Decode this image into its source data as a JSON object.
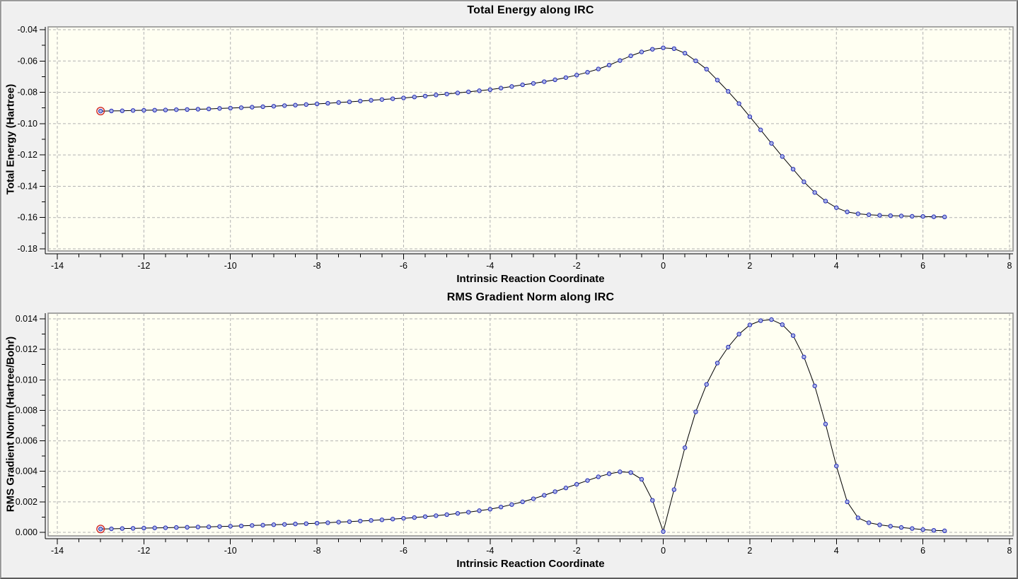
{
  "style": {
    "window_bg": "#f0f0f0",
    "plot_bg": "#fffff2",
    "plot_border": "#8a8a8a",
    "grid": "#b2b2b2",
    "axis": "#000000",
    "line": "#000000",
    "text": "#000000",
    "marker_fill": "#a9b3e8",
    "marker_stroke": "#2329b4",
    "selected_ring": "#d02622"
  },
  "chart_data": [
    {
      "type": "line",
      "title": "Total Energy along IRC",
      "xlabel": "Intrinsic Reaction Coordinate",
      "ylabel": "Total Energy (Hartree)",
      "grid": true,
      "xlim": [
        -14.2125,
        8.0817
      ],
      "ylim": [
        -0.18135,
        -0.03819
      ],
      "x_ticks": {
        "values": [
          -14,
          -12,
          -10,
          -8,
          -6,
          -4,
          -2,
          0,
          2,
          4,
          6,
          8
        ],
        "labels": [
          "-14",
          "-12",
          "-10",
          "-8",
          "-6",
          "-4",
          "-2",
          "0",
          "2",
          "4",
          "6",
          "8"
        ]
      },
      "x_minor_step": 0.5,
      "y_ticks": {
        "values": [
          -0.18,
          -0.16,
          -0.14,
          -0.12,
          -0.1,
          -0.08,
          -0.06,
          -0.04
        ],
        "labels": [
          "-0.18",
          "-0.16",
          "-0.14",
          "-0.12",
          "-0.10",
          "-0.08",
          "-0.06",
          "-0.04"
        ]
      },
      "y_minor_step": 0.01,
      "selected_point_index": 0,
      "series": [
        {
          "name": "Total Energy",
          "x": [
            -13,
            -12.75,
            -12.5,
            -12.25,
            -12,
            -11.75,
            -11.5,
            -11.25,
            -11,
            -10.75,
            -10.5,
            -10.25,
            -10,
            -9.75,
            -9.5,
            -9.25,
            -9,
            -8.75,
            -8.5,
            -8.25,
            -8,
            -7.75,
            -7.5,
            -7.25,
            -7,
            -6.75,
            -6.5,
            -6.25,
            -6,
            -5.75,
            -5.5,
            -5.25,
            -5,
            -4.75,
            -4.5,
            -4.25,
            -4,
            -3.75,
            -3.5,
            -3.25,
            -3,
            -2.75,
            -2.5,
            -2.25,
            -2,
            -1.75,
            -1.5,
            -1.25,
            -1,
            -0.75,
            -0.5,
            -0.25,
            0,
            0.25,
            0.5,
            0.75,
            1,
            1.25,
            1.5,
            1.75,
            2,
            2.25,
            2.5,
            2.75,
            3,
            3.25,
            3.5,
            3.75,
            4,
            4.25,
            4.5,
            4.75,
            5,
            5.25,
            5.5,
            5.75,
            6,
            6.25,
            6.5
          ],
          "y": [
            -0.092,
            -0.0919,
            -0.0918,
            -0.0916,
            -0.0915,
            -0.0914,
            -0.0913,
            -0.0911,
            -0.091,
            -0.0908,
            -0.0906,
            -0.0903,
            -0.0901,
            -0.0898,
            -0.0895,
            -0.0892,
            -0.0889,
            -0.0885,
            -0.0882,
            -0.0878,
            -0.0874,
            -0.087,
            -0.0865,
            -0.0861,
            -0.0856,
            -0.0851,
            -0.0846,
            -0.0841,
            -0.0836,
            -0.083,
            -0.0824,
            -0.0817,
            -0.0811,
            -0.0804,
            -0.0797,
            -0.079,
            -0.0783,
            -0.0773,
            -0.0763,
            -0.0752,
            -0.0743,
            -0.0732,
            -0.072,
            -0.0706,
            -0.069,
            -0.0672,
            -0.0651,
            -0.0626,
            -0.0597,
            -0.0567,
            -0.0542,
            -0.0525,
            -0.0516,
            -0.0521,
            -0.055,
            -0.0599,
            -0.0652,
            -0.0722,
            -0.0794,
            -0.0872,
            -0.0956,
            -0.104,
            -0.1126,
            -0.121,
            -0.1291,
            -0.1372,
            -0.144,
            -0.1495,
            -0.1537,
            -0.1564,
            -0.1576,
            -0.1582,
            -0.1586,
            -0.1588,
            -0.159,
            -0.1592,
            -0.1593,
            -0.1595,
            -0.1596
          ]
        }
      ]
    },
    {
      "type": "line",
      "title": "RMS Gradient Norm along IRC",
      "xlabel": "Intrinsic Reaction Coordinate",
      "ylabel": "RMS Gradient Norm (Hartree/Bohr)",
      "grid": true,
      "xlim": [
        -14.2125,
        8.0817
      ],
      "ylim": [
        -0.000232,
        0.014371
      ],
      "x_ticks": {
        "values": [
          -14,
          -12,
          -10,
          -8,
          -6,
          -4,
          -2,
          0,
          2,
          4,
          6,
          8
        ],
        "labels": [
          "-14",
          "-12",
          "-10",
          "-8",
          "-6",
          "-4",
          "-2",
          "0",
          "2",
          "4",
          "6",
          "8"
        ]
      },
      "x_minor_step": 0.5,
      "y_ticks": {
        "values": [
          0.0,
          0.002,
          0.004,
          0.006,
          0.008,
          0.01,
          0.012,
          0.014
        ],
        "labels": [
          "0.000",
          "0.002",
          "0.004",
          "0.006",
          "0.008",
          "0.010",
          "0.012",
          "0.014"
        ]
      },
      "y_minor_step": 0.001,
      "selected_point_index": 0,
      "series": [
        {
          "name": "RMS Gradient Norm",
          "x": [
            -13,
            -12.75,
            -12.5,
            -12.25,
            -12,
            -11.75,
            -11.5,
            -11.25,
            -11,
            -10.75,
            -10.5,
            -10.25,
            -10,
            -9.75,
            -9.5,
            -9.25,
            -9,
            -8.75,
            -8.5,
            -8.25,
            -8,
            -7.75,
            -7.5,
            -7.25,
            -7,
            -6.75,
            -6.5,
            -6.25,
            -6,
            -5.75,
            -5.5,
            -5.25,
            -5,
            -4.75,
            -4.5,
            -4.25,
            -4,
            -3.75,
            -3.5,
            -3.25,
            -3,
            -2.75,
            -2.5,
            -2.25,
            -2,
            -1.75,
            -1.5,
            -1.25,
            -1,
            -0.75,
            -0.5,
            -0.25,
            0,
            0.25,
            0.5,
            0.75,
            1,
            1.25,
            1.5,
            1.75,
            2,
            2.25,
            2.5,
            2.75,
            3,
            3.25,
            3.5,
            3.75,
            4,
            4.25,
            4.5,
            4.75,
            5,
            5.25,
            5.5,
            5.75,
            6,
            6.25,
            6.5
          ],
          "y": [
            0.00022,
            0.00023,
            0.00025,
            0.00026,
            0.00028,
            0.00029,
            0.0003,
            0.00032,
            0.00033,
            0.00035,
            0.00036,
            0.00038,
            0.0004,
            0.00042,
            0.00045,
            0.00047,
            0.0005,
            0.00052,
            0.00055,
            0.00057,
            0.0006,
            0.00063,
            0.00067,
            0.0007,
            0.00074,
            0.00078,
            0.00082,
            0.00087,
            0.00092,
            0.00097,
            0.00103,
            0.00109,
            0.00116,
            0.00124,
            0.00132,
            0.00142,
            0.00152,
            0.00166,
            0.00182,
            0.002,
            0.0022,
            0.00243,
            0.00267,
            0.00291,
            0.00315,
            0.0034,
            0.00364,
            0.00384,
            0.00397,
            0.00392,
            0.00348,
            0.0021,
            5e-05,
            0.0028,
            0.00555,
            0.0079,
            0.0097,
            0.0111,
            0.01215,
            0.013,
            0.0136,
            0.01388,
            0.01395,
            0.01362,
            0.0129,
            0.0115,
            0.0096,
            0.0071,
            0.00435,
            0.002,
            0.00095,
            0.00063,
            0.00049,
            0.0004,
            0.00032,
            0.00025,
            0.00018,
            0.00013,
            0.0001
          ]
        }
      ]
    }
  ]
}
